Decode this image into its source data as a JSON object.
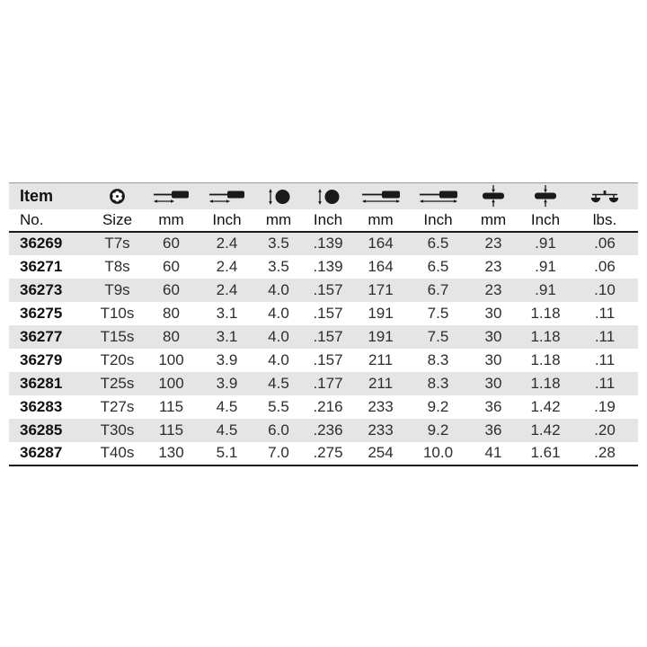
{
  "page": {
    "background": "#ffffff"
  },
  "table": {
    "title_semantics": "torx-screwdriver-spec-table",
    "colors": {
      "stripe": "#e5e5e5",
      "rule_dark": "#1a1a1a",
      "rule_top": "#999999",
      "header_text": "#111111",
      "data_text": "#2d2d2d",
      "icon_ink": "#1a1a1a"
    },
    "header": {
      "item_top": "Item",
      "item_bottom": "No."
    },
    "columns": [
      {
        "id": "item_no",
        "icon": null,
        "label": "No."
      },
      {
        "id": "size",
        "icon": "torx-icon",
        "label": "Size"
      },
      {
        "id": "blade_mm",
        "icon": "blade-length-icon",
        "label": "mm"
      },
      {
        "id": "blade_inch",
        "icon": "blade-length-icon",
        "label": "Inch"
      },
      {
        "id": "tip_mm",
        "icon": "tip-diameter-icon",
        "label": "mm"
      },
      {
        "id": "tip_inch",
        "icon": "tip-diameter-icon",
        "label": "Inch"
      },
      {
        "id": "overall_mm",
        "icon": "overall-length-icon",
        "label": "mm"
      },
      {
        "id": "overall_inch",
        "icon": "overall-length-icon",
        "label": "Inch"
      },
      {
        "id": "handle_mm",
        "icon": "handle-diameter-icon",
        "label": "mm"
      },
      {
        "id": "handle_inch",
        "icon": "handle-diameter-icon",
        "label": "Inch"
      },
      {
        "id": "weight_lbs",
        "icon": "scale-icon",
        "label": "lbs."
      }
    ],
    "rows": [
      [
        "36269",
        "T7s",
        "60",
        "2.4",
        "3.5",
        ".139",
        "164",
        "6.5",
        "23",
        ".91",
        ".06"
      ],
      [
        "36271",
        "T8s",
        "60",
        "2.4",
        "3.5",
        ".139",
        "164",
        "6.5",
        "23",
        ".91",
        ".06"
      ],
      [
        "36273",
        "T9s",
        "60",
        "2.4",
        "4.0",
        ".157",
        "171",
        "6.7",
        "23",
        ".91",
        ".10"
      ],
      [
        "36275",
        "T10s",
        "80",
        "3.1",
        "4.0",
        ".157",
        "191",
        "7.5",
        "30",
        "1.18",
        ".11"
      ],
      [
        "36277",
        "T15s",
        "80",
        "3.1",
        "4.0",
        ".157",
        "191",
        "7.5",
        "30",
        "1.18",
        ".11"
      ],
      [
        "36279",
        "T20s",
        "100",
        "3.9",
        "4.0",
        ".157",
        "211",
        "8.3",
        "30",
        "1.18",
        ".11"
      ],
      [
        "36281",
        "T25s",
        "100",
        "3.9",
        "4.5",
        ".177",
        "211",
        "8.3",
        "30",
        "1.18",
        ".11"
      ],
      [
        "36283",
        "T27s",
        "115",
        "4.5",
        "5.5",
        ".216",
        "233",
        "9.2",
        "36",
        "1.42",
        ".19"
      ],
      [
        "36285",
        "T30s",
        "115",
        "4.5",
        "6.0",
        ".236",
        "233",
        "9.2",
        "36",
        "1.42",
        ".20"
      ],
      [
        "36287",
        "T40s",
        "130",
        "5.1",
        "7.0",
        ".275",
        "254",
        "10.0",
        "41",
        "1.61",
        ".28"
      ]
    ]
  }
}
